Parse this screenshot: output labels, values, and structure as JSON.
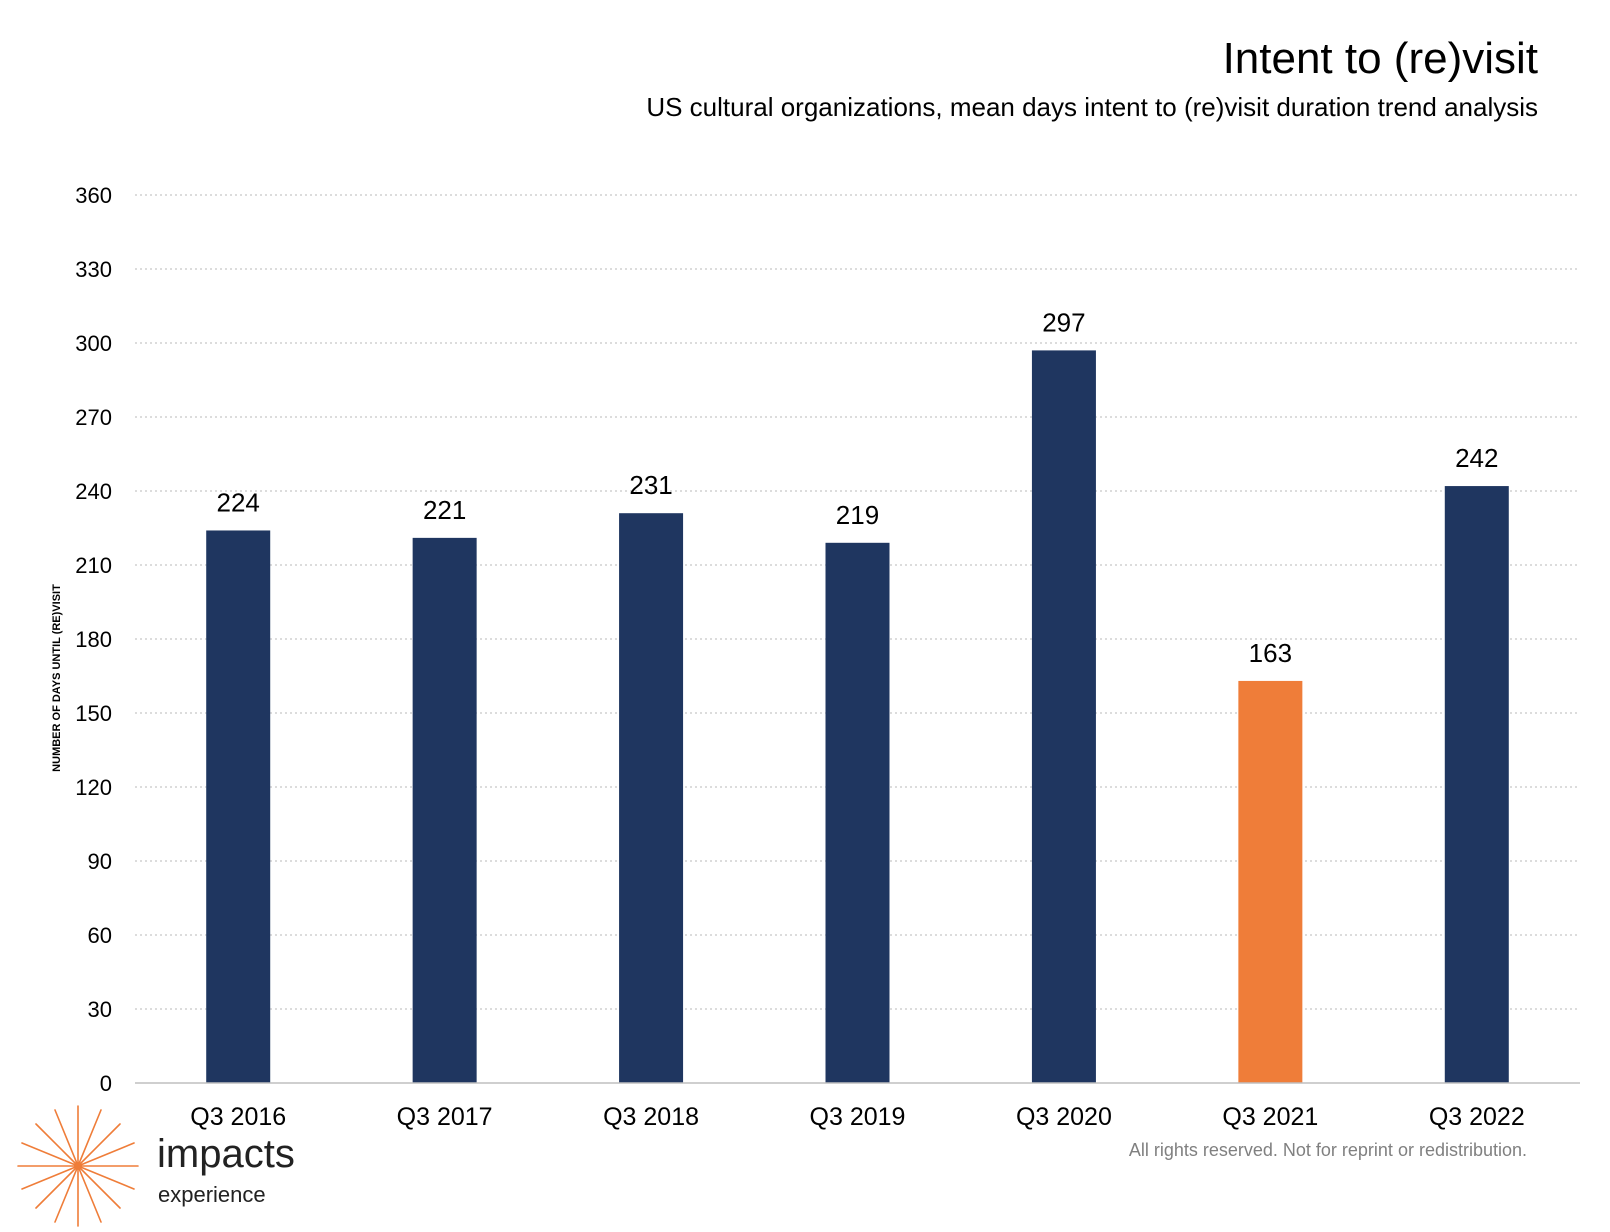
{
  "chart_data": {
    "type": "bar",
    "title": "Intent to (re)visit",
    "subtitle": "US cultural organizations, mean days intent to (re)visit duration trend analysis",
    "ylabel": "NUMBER OF DAYS UNTIL (RE)VISIT",
    "xlabel": "",
    "categories": [
      "Q3 2016",
      "Q3 2017",
      "Q3 2018",
      "Q3 2019",
      "Q3 2020",
      "Q3 2021",
      "Q3 2022"
    ],
    "values": [
      224,
      221,
      231,
      219,
      297,
      163,
      242
    ],
    "data_labels": [
      "224",
      "221",
      "231",
      "219",
      "297",
      "163",
      "242"
    ],
    "ylim": [
      0,
      360
    ],
    "yticks": [
      0,
      30,
      60,
      90,
      120,
      150,
      180,
      210,
      240,
      270,
      300,
      330,
      360
    ],
    "ytick_labels": [
      "0",
      "30",
      "60",
      "90",
      "120",
      "150",
      "180",
      "210",
      "240",
      "270",
      "300",
      "330",
      "360"
    ],
    "grid": true,
    "legend": "none",
    "bar_colors": [
      "#1f3660",
      "#1f3660",
      "#1f3660",
      "#1f3660",
      "#1f3660",
      "#ef7d39",
      "#1f3660"
    ]
  },
  "footer": {
    "copyright": "All rights reserved. Not for reprint or redistribution."
  },
  "logo": {
    "name": "impacts",
    "sub": "experience",
    "accent_color": "#ef7d39"
  }
}
